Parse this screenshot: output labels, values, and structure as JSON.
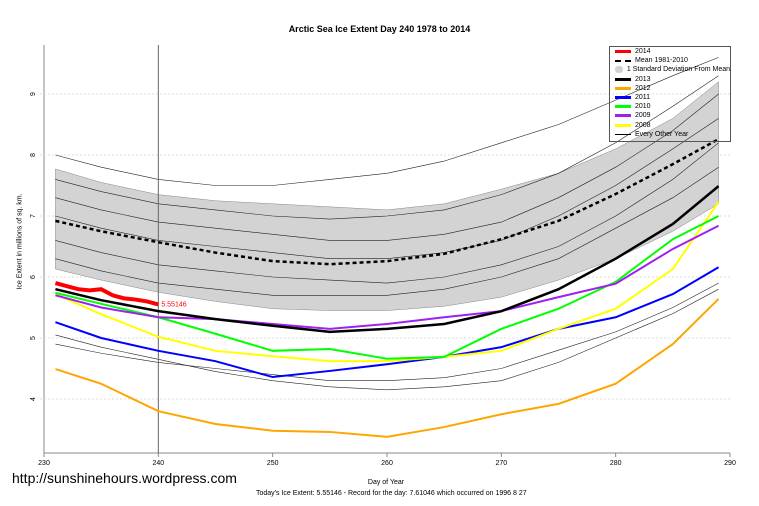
{
  "title": "Arctic Sea Ice Extent Day 240 1978 to 2014",
  "watermark_url": "http://sunshinehours.wordpress.com",
  "footer_note": "Today's Ice Extent: 5.55146  - Record for the day: 7.61046 which occurred on 1996 8 27",
  "current_value_label": "5.55146",
  "chart_data": {
    "type": "line",
    "title": "Arctic Sea Ice Extent Day 240 1978 to 2014",
    "xlabel": "Day of Year",
    "ylabel": "Ice Extent in millions of sq. km.",
    "xlim": [
      230,
      290
    ],
    "ylim": [
      3.2,
      9.9
    ],
    "xticks": [
      230,
      240,
      250,
      260,
      270,
      280,
      290
    ],
    "yticks": [
      4,
      5,
      6,
      7,
      8,
      9
    ],
    "grid": true,
    "legend_position": "top-right",
    "marker_day": 240,
    "days": [
      231,
      235,
      240,
      245,
      250,
      255,
      260,
      265,
      270,
      275,
      280,
      285,
      289
    ],
    "band": {
      "name": "1 Standard Deviation From Mean",
      "color": "#d3d3d3",
      "upper": [
        7.77,
        7.55,
        7.35,
        7.25,
        7.2,
        7.15,
        7.1,
        7.2,
        7.44,
        7.7,
        8.1,
        8.6,
        9.2
      ],
      "lower": [
        6.13,
        5.95,
        5.75,
        5.6,
        5.48,
        5.45,
        5.45,
        5.52,
        5.67,
        5.95,
        6.3,
        6.75,
        7.2
      ]
    },
    "series": [
      {
        "name": "Mean 1981-2010",
        "color": "#000000",
        "style": "dashed",
        "values": [
          6.92,
          6.75,
          6.57,
          6.4,
          6.26,
          6.21,
          6.26,
          6.38,
          6.62,
          6.92,
          7.36,
          7.85,
          8.26
        ]
      },
      {
        "name": "2013",
        "color": "#000000",
        "values": [
          5.8,
          5.62,
          5.44,
          5.31,
          5.2,
          5.1,
          5.15,
          5.23,
          5.44,
          5.8,
          6.3,
          6.87,
          7.49
        ]
      },
      {
        "name": "2012",
        "color": "#ffa500",
        "values": [
          4.49,
          4.25,
          3.8,
          3.59,
          3.48,
          3.46,
          3.38,
          3.54,
          3.75,
          3.92,
          4.25,
          4.9,
          5.64
        ]
      },
      {
        "name": "2011",
        "color": "#0000ff",
        "values": [
          5.26,
          5.0,
          4.79,
          4.62,
          4.36,
          4.46,
          4.57,
          4.69,
          4.85,
          5.15,
          5.34,
          5.72,
          6.16
        ]
      },
      {
        "name": "2010",
        "color": "#00ff00",
        "values": [
          5.74,
          5.56,
          5.34,
          5.07,
          4.79,
          4.82,
          4.66,
          4.69,
          5.15,
          5.48,
          5.92,
          6.62,
          7.0
        ]
      },
      {
        "name": "2009",
        "color": "#a020f0",
        "values": [
          5.7,
          5.5,
          5.34,
          5.31,
          5.23,
          5.15,
          5.23,
          5.34,
          5.44,
          5.67,
          5.89,
          6.46,
          6.84
        ]
      },
      {
        "name": "2008",
        "color": "#ffff00",
        "values": [
          5.72,
          5.39,
          5.02,
          4.79,
          4.7,
          4.62,
          4.62,
          4.69,
          4.79,
          5.15,
          5.48,
          6.13,
          7.23
        ]
      },
      {
        "name": "2014",
        "color": "#ff0000",
        "days": [
          231,
          232,
          233,
          234,
          235,
          236,
          237,
          238,
          239,
          240
        ],
        "values": [
          5.9,
          5.85,
          5.8,
          5.78,
          5.8,
          5.7,
          5.65,
          5.63,
          5.6,
          5.55
        ]
      }
    ],
    "other_years": {
      "name": "Every Other Year",
      "color": "#000000",
      "lines": [
        [
          8.0,
          7.8,
          7.6,
          7.5,
          7.5,
          7.6,
          7.7,
          7.9,
          8.2,
          8.5,
          8.9,
          9.3,
          9.6
        ],
        [
          7.6,
          7.4,
          7.2,
          7.1,
          7.0,
          6.95,
          7.0,
          7.1,
          7.35,
          7.7,
          8.2,
          8.8,
          9.3
        ],
        [
          7.3,
          7.1,
          6.9,
          6.8,
          6.7,
          6.6,
          6.6,
          6.7,
          6.9,
          7.3,
          7.8,
          8.4,
          9.0
        ],
        [
          7.0,
          6.8,
          6.6,
          6.5,
          6.4,
          6.3,
          6.3,
          6.4,
          6.6,
          7.0,
          7.5,
          8.1,
          8.6
        ],
        [
          6.6,
          6.4,
          6.2,
          6.1,
          6.0,
          5.95,
          5.9,
          6.0,
          6.2,
          6.5,
          7.0,
          7.6,
          8.2
        ],
        [
          6.3,
          6.1,
          5.9,
          5.8,
          5.7,
          5.7,
          5.7,
          5.8,
          6.0,
          6.3,
          6.8,
          7.3,
          7.8
        ],
        [
          5.05,
          4.85,
          4.65,
          4.45,
          4.3,
          4.2,
          4.15,
          4.2,
          4.3,
          4.6,
          5.0,
          5.4,
          5.8
        ],
        [
          4.9,
          4.75,
          4.6,
          4.5,
          4.4,
          4.3,
          4.3,
          4.35,
          4.5,
          4.8,
          5.1,
          5.5,
          5.9
        ]
      ]
    }
  },
  "legend": [
    {
      "label": "2014",
      "color": "#ff0000",
      "kind": "line"
    },
    {
      "label": "Mean 1981-2010",
      "color": "#000000",
      "kind": "dashed"
    },
    {
      "label": "1 Standard Deviation From Mean",
      "color": "#d3d3d3",
      "kind": "band"
    },
    {
      "label": "2013",
      "color": "#000000",
      "kind": "line"
    },
    {
      "label": "2012",
      "color": "#ffa500",
      "kind": "line"
    },
    {
      "label": "2011",
      "color": "#0000ff",
      "kind": "line"
    },
    {
      "label": "2010",
      "color": "#00ff00",
      "kind": "line"
    },
    {
      "label": "2009",
      "color": "#a020f0",
      "kind": "line"
    },
    {
      "label": "2008",
      "color": "#ffff00",
      "kind": "line"
    },
    {
      "label": "Every Other Year",
      "color": "#000000",
      "kind": "thin"
    }
  ]
}
